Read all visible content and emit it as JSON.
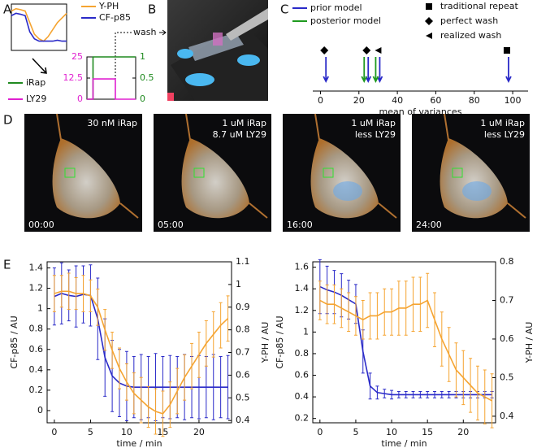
{
  "panel_labels": [
    "A",
    "B",
    "C",
    "D",
    "E"
  ],
  "frames": [
    {
      "time": "00:00",
      "lines": [
        "30 nM iRap"
      ]
    },
    {
      "time": "05:00",
      "lines": [
        "1 uM iRap",
        "8.7 uM LY29"
      ]
    },
    {
      "time": "16:00",
      "lines": [
        "1 uM iRap",
        "less LY29"
      ]
    },
    {
      "time": "24:00",
      "lines": [
        "1 uM iRap",
        "less LY29"
      ]
    }
  ],
  "chart_data": [
    {
      "type": "line",
      "xlim": [
        0,
        24
      ],
      "ylim": [
        0,
        1
      ],
      "x": [
        0,
        2,
        4,
        6,
        8,
        10,
        12,
        14,
        16,
        18,
        20,
        22,
        24
      ],
      "series": [
        {
          "name": "Y-PH",
          "color": "#f5a431",
          "values": [
            0.85,
            0.9,
            0.88,
            0.85,
            0.6,
            0.35,
            0.25,
            0.2,
            0.3,
            0.45,
            0.6,
            0.7,
            0.8
          ]
        },
        {
          "name": "CF-p85",
          "color": "#2a2ac8",
          "values": [
            0.75,
            0.8,
            0.78,
            0.75,
            0.4,
            0.25,
            0.2,
            0.2,
            0.2,
            0.2,
            0.22,
            0.2,
            0.2
          ]
        }
      ]
    },
    {
      "type": "step",
      "xlim": [
        0,
        24
      ],
      "ylim": [
        0,
        25
      ],
      "yticks": [
        0,
        12.5,
        25
      ],
      "y2lim": [
        0,
        1
      ],
      "y2ticks": [
        0,
        0.5,
        1
      ],
      "colored_axes": true,
      "annotation": "wash",
      "series": [
        {
          "name": "iRap",
          "color": "#1f8a1f",
          "axis": "y2",
          "x": [
            0,
            3,
            3,
            24
          ],
          "values": [
            0,
            0,
            1,
            1
          ]
        },
        {
          "name": "LY29",
          "color": "#e020d0",
          "x": [
            0,
            3,
            3,
            14,
            14,
            24
          ],
          "values": [
            0,
            0,
            12,
            12,
            0,
            0
          ]
        }
      ]
    },
    {
      "type": "scatter",
      "xlabel": "mean of variances",
      "xlim": [
        -4,
        108
      ],
      "xticks": [
        0,
        20,
        40,
        60,
        80,
        100
      ],
      "series": [
        {
          "name": "prior model",
          "color": "#2a2ac8",
          "marker": "arrow",
          "x": [
            2,
            24,
            30,
            97
          ]
        },
        {
          "name": "posterior model",
          "color": "#1f9a1f",
          "marker": "arrow",
          "x": [
            24,
            30
          ]
        },
        {
          "name": "traditional repeat",
          "color": "#000000",
          "marker": "square",
          "x": [
            97
          ]
        },
        {
          "name": "perfect wash",
          "color": "#000000",
          "marker": "diamond",
          "x": [
            2,
            24
          ]
        },
        {
          "name": "realized wash",
          "color": "#000000",
          "marker": "triangle",
          "x": [
            30
          ]
        }
      ]
    },
    {
      "type": "line",
      "xlabel": "time / min",
      "ylabel": "CF-p85 / AU",
      "y2label": "Y-PH / AU",
      "xlim": [
        -1,
        24.5
      ],
      "xticks": [
        0,
        5,
        10,
        15,
        20
      ],
      "ylim": [
        -0.12,
        1.46
      ],
      "yticks": [
        0,
        0.2,
        0.4,
        0.6,
        0.8,
        1,
        1.2,
        1.4
      ],
      "y2lim": [
        0.39,
        1.1
      ],
      "y2ticks": [
        0.4,
        0.5,
        0.6,
        0.7,
        0.8,
        0.9,
        1,
        1.1
      ],
      "x": [
        0,
        1,
        2,
        3,
        4,
        5,
        6,
        7,
        8,
        9,
        10,
        11,
        12,
        13,
        14,
        15,
        16,
        17,
        18,
        19,
        20,
        21,
        22,
        23,
        24
      ],
      "series": [
        {
          "color": "#2a2ac8",
          "values": [
            1.12,
            1.15,
            1.13,
            1.12,
            1.14,
            1.13,
            0.9,
            0.52,
            0.34,
            0.27,
            0.24,
            0.23,
            0.23,
            0.23,
            0.23,
            0.23,
            0.23,
            0.23,
            0.23,
            0.23,
            0.23,
            0.23,
            0.23,
            0.23,
            0.23
          ],
          "errors": [
            0.28,
            0.3,
            0.25,
            0.3,
            0.28,
            0.3,
            0.4,
            0.38,
            0.35,
            0.33,
            0.34,
            0.3,
            0.32,
            0.3,
            0.33,
            0.3,
            0.31,
            0.3,
            0.32,
            0.3,
            0.31,
            0.3,
            0.32,
            0.3,
            0.31
          ]
        },
        {
          "color": "#f5a431",
          "axis": "y2",
          "values": [
            0.96,
            0.97,
            0.97,
            0.96,
            0.96,
            0.95,
            0.9,
            0.8,
            0.71,
            0.63,
            0.57,
            0.52,
            0.49,
            0.46,
            0.44,
            0.43,
            0.47,
            0.53,
            0.59,
            0.64,
            0.69,
            0.74,
            0.78,
            0.82,
            0.85
          ],
          "errors": [
            0.08,
            0.07,
            0.08,
            0.07,
            0.08,
            0.07,
            0.08,
            0.09,
            0.08,
            0.09,
            0.08,
            0.09,
            0.1,
            0.09,
            0.1,
            0.1,
            0.1,
            0.1,
            0.1,
            0.1,
            0.1,
            0.1,
            0.1,
            0.1,
            0.1
          ]
        }
      ]
    },
    {
      "type": "line",
      "xlabel": "time / min",
      "ylabel": "CF-p85 / AU",
      "y2label": "Y-PH / AU",
      "xlim": [
        -1,
        24.5
      ],
      "xticks": [
        0,
        5,
        10,
        15,
        20
      ],
      "ylim": [
        0.16,
        1.65
      ],
      "yticks": [
        0.2,
        0.4,
        0.6,
        0.8,
        1,
        1.2,
        1.4,
        1.6
      ],
      "y2lim": [
        0.383,
        0.8
      ],
      "y2ticks": [
        0.4,
        0.5,
        0.6,
        0.7,
        0.8
      ],
      "x": [
        0,
        1,
        2,
        3,
        4,
        5,
        6,
        7,
        8,
        9,
        10,
        11,
        12,
        13,
        14,
        15,
        16,
        17,
        18,
        19,
        20,
        21,
        22,
        23,
        24
      ],
      "series": [
        {
          "color": "#2a2ac8",
          "values": [
            1.42,
            1.39,
            1.37,
            1.34,
            1.3,
            1.26,
            0.82,
            0.5,
            0.44,
            0.43,
            0.42,
            0.42,
            0.42,
            0.42,
            0.42,
            0.42,
            0.42,
            0.42,
            0.42,
            0.42,
            0.42,
            0.42,
            0.42,
            0.42,
            0.42
          ],
          "errors": [
            0.25,
            0.22,
            0.2,
            0.2,
            0.18,
            0.18,
            0.2,
            0.12,
            0.06,
            0.04,
            0.04,
            0.03,
            0.03,
            0.03,
            0.03,
            0.03,
            0.03,
            0.03,
            0.03,
            0.03,
            0.03,
            0.03,
            0.03,
            0.03,
            0.03
          ]
        },
        {
          "color": "#f5a431",
          "axis": "y2",
          "values": [
            0.7,
            0.69,
            0.69,
            0.68,
            0.67,
            0.66,
            0.65,
            0.66,
            0.66,
            0.67,
            0.67,
            0.68,
            0.68,
            0.69,
            0.69,
            0.7,
            0.65,
            0.6,
            0.56,
            0.52,
            0.5,
            0.48,
            0.46,
            0.45,
            0.44
          ],
          "errors": [
            0.05,
            0.05,
            0.05,
            0.05,
            0.05,
            0.05,
            0.05,
            0.06,
            0.06,
            0.06,
            0.06,
            0.07,
            0.07,
            0.07,
            0.07,
            0.07,
            0.07,
            0.07,
            0.07,
            0.07,
            0.07,
            0.07,
            0.07,
            0.07,
            0.07
          ]
        }
      ]
    }
  ]
}
